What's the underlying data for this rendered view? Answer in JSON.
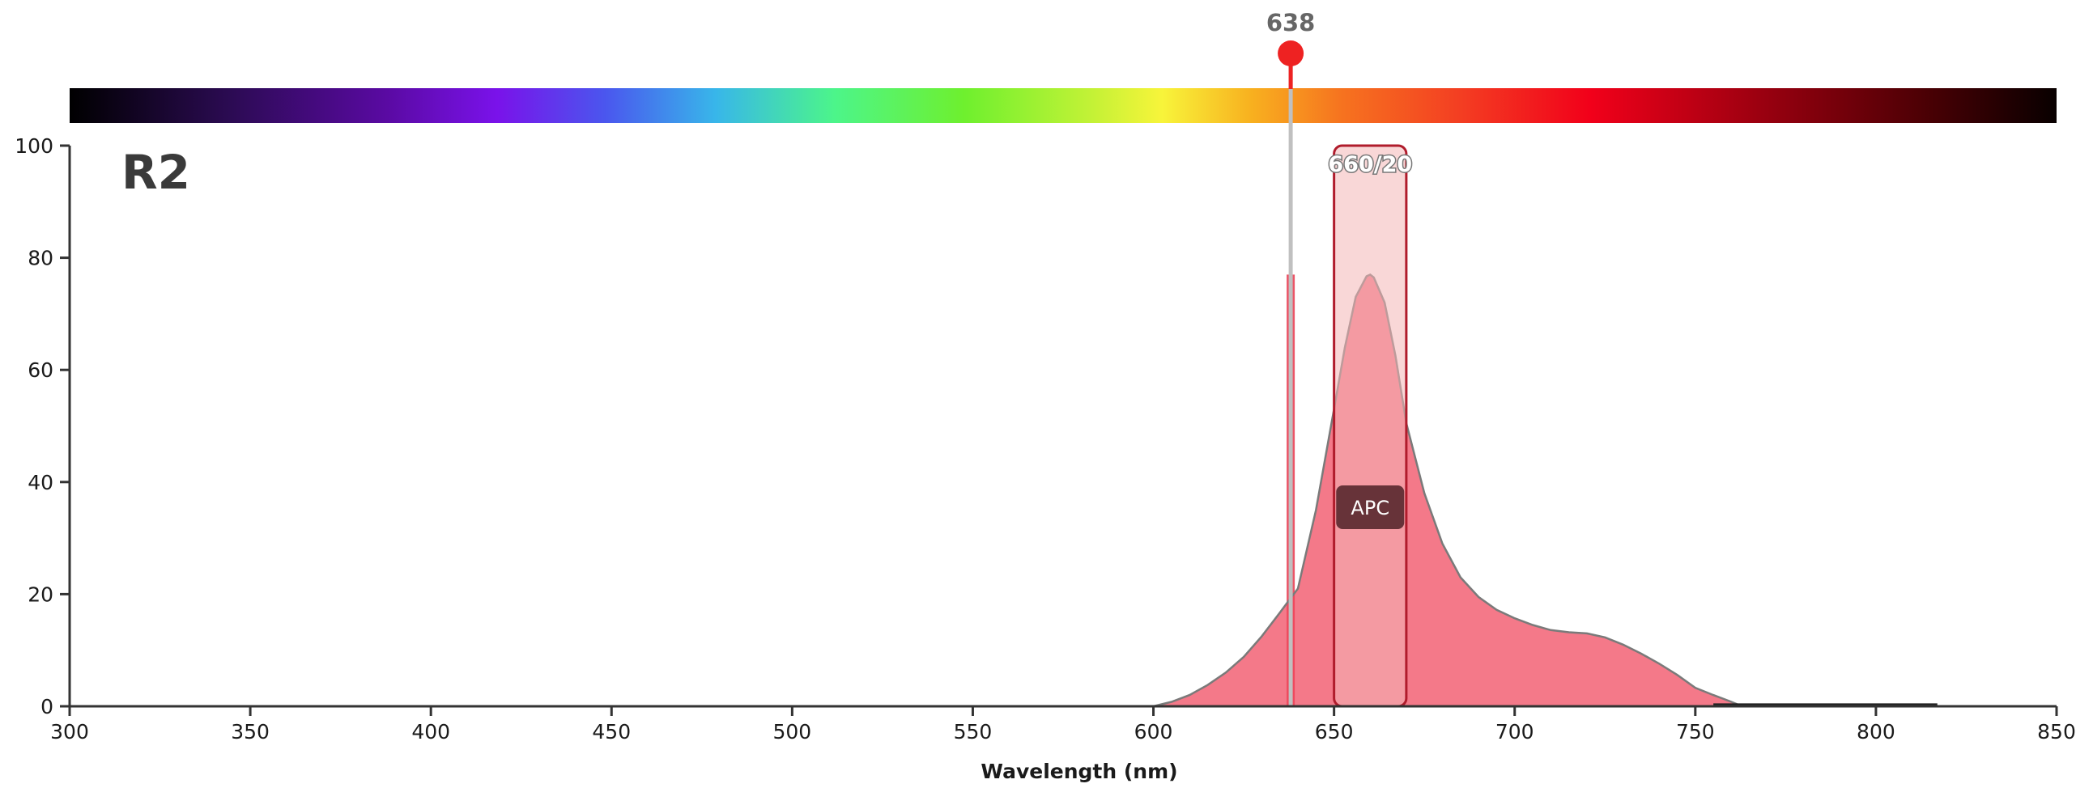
{
  "chart_data": {
    "type": "area",
    "panel_label": "R2",
    "xlabel": "Wavelength (nm)",
    "ylabel": "",
    "xlim": [
      300,
      850
    ],
    "ylim": [
      0,
      100
    ],
    "x_ticks": [
      300,
      350,
      400,
      450,
      500,
      550,
      600,
      650,
      700,
      750,
      800,
      850
    ],
    "y_ticks": [
      0,
      20,
      40,
      60,
      80,
      100
    ],
    "grid": false,
    "spectrum_bar": true,
    "laser": {
      "label": "638",
      "wavelength": 638,
      "color": "#ee2222",
      "line_color": "#c0c0c0"
    },
    "filter": {
      "label": "660/20",
      "center": 660,
      "width": 20,
      "low": 650,
      "high": 670,
      "transmission": 100,
      "color": "#f4b7b7",
      "border": "#b01c2c"
    },
    "series": [
      {
        "name": "APC",
        "color": "#f0455c",
        "x": [
          600,
          605,
          610,
          615,
          620,
          625,
          630,
          635,
          638,
          640,
          645,
          650,
          653,
          656,
          659,
          660,
          661,
          664,
          667,
          670,
          675,
          680,
          685,
          690,
          695,
          700,
          705,
          710,
          715,
          720,
          725,
          730,
          735,
          740,
          745,
          750,
          755,
          760,
          763
        ],
        "values": [
          0,
          0.8,
          2,
          3.8,
          6,
          8.8,
          12.5,
          16.7,
          19.3,
          21,
          35,
          53,
          64,
          73,
          76.7,
          77,
          76.5,
          72,
          62.5,
          50.5,
          38,
          29,
          23,
          19.5,
          17.2,
          15.7,
          14.5,
          13.6,
          13.2,
          13,
          12.3,
          11,
          9.4,
          7.6,
          5.6,
          3.3,
          2,
          0.8,
          0
        ]
      }
    ],
    "laser_excitation": {
      "wavelength": 638,
      "value": 77,
      "color": "#e94356"
    },
    "baseline_trace": {
      "x": [
        755,
        817
      ],
      "values": [
        0.3,
        0.3
      ],
      "color": "#222222"
    }
  }
}
